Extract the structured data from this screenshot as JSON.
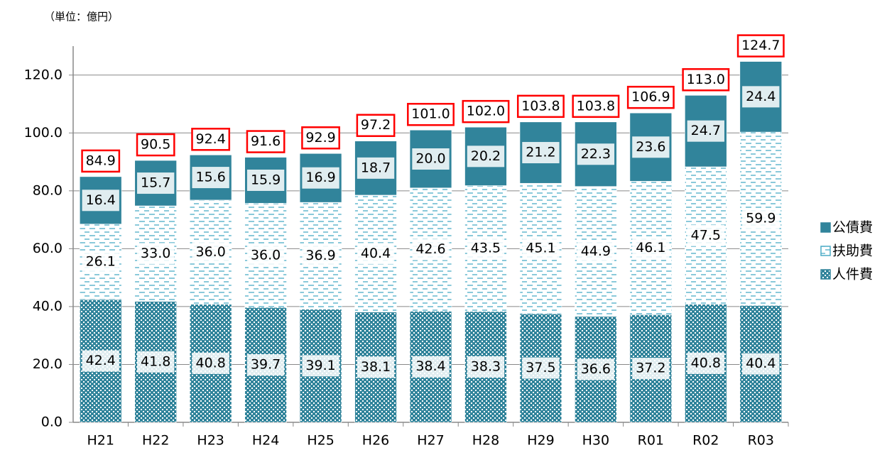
{
  "chart_data": {
    "type": "stacked-bar",
    "unit_label": "（単位：億円）",
    "categories": [
      "H21",
      "H22",
      "H23",
      "H24",
      "H25",
      "H26",
      "H27",
      "H28",
      "H29",
      "H30",
      "R01",
      "R02",
      "R03"
    ],
    "series": [
      {
        "name": "人件費",
        "color": "#31849b",
        "values": [
          42.4,
          41.8,
          40.8,
          39.7,
          39.1,
          38.1,
          38.4,
          38.3,
          37.5,
          36.6,
          37.2,
          40.8,
          40.4
        ],
        "value_labels": [
          "42.4",
          "41.8",
          "40.8",
          "39.7",
          "39.1",
          "38.1",
          "38.4",
          "38.3",
          "37.5",
          "36.6",
          "37.2",
          "40.8",
          "40.4"
        ]
      },
      {
        "name": "扶助費",
        "color": "#4bacc6",
        "values": [
          26.1,
          33.0,
          36.0,
          36.0,
          36.9,
          40.4,
          42.6,
          43.5,
          45.1,
          44.9,
          46.1,
          47.5,
          59.9
        ],
        "value_labels": [
          "26.1",
          "33.0",
          "36.0",
          "36.0",
          "36.9",
          "40.4",
          "42.6",
          "43.5",
          "45.1",
          "44.9",
          "46.1",
          "47.5",
          "59.9"
        ]
      },
      {
        "name": "公債費",
        "color": "#31849b",
        "values": [
          16.4,
          15.7,
          15.6,
          15.9,
          16.9,
          18.7,
          20.0,
          20.2,
          21.2,
          22.3,
          23.6,
          24.7,
          24.4
        ],
        "value_labels": [
          "16.4",
          "15.7",
          "15.6",
          "15.9",
          "16.9",
          "18.7",
          "20.0",
          "20.2",
          "21.2",
          "22.3",
          "23.6",
          "24.7",
          "24.4"
        ]
      }
    ],
    "totals": {
      "color": "#ff0000",
      "values": [
        84.9,
        90.5,
        92.4,
        91.6,
        92.9,
        97.2,
        101.0,
        102.0,
        103.8,
        103.8,
        106.9,
        113.0,
        124.7
      ],
      "value_labels": [
        "84.9",
        "90.5",
        "92.4",
        "91.6",
        "92.9",
        "97.2",
        "101.0",
        "102.0",
        "103.8",
        "103.8",
        "106.9",
        "113.0",
        "124.7"
      ]
    },
    "ylim": [
      0,
      130
    ],
    "yticks": [
      {
        "value": 0,
        "label": "0.0"
      },
      {
        "value": 20,
        "label": "20.0"
      },
      {
        "value": 40,
        "label": "40.0"
      },
      {
        "value": 60,
        "label": "60.0"
      },
      {
        "value": 80,
        "label": "80.0"
      },
      {
        "value": 100,
        "label": "100.0"
      },
      {
        "value": 120,
        "label": "120.0"
      }
    ],
    "grid": true,
    "legend": "right"
  }
}
